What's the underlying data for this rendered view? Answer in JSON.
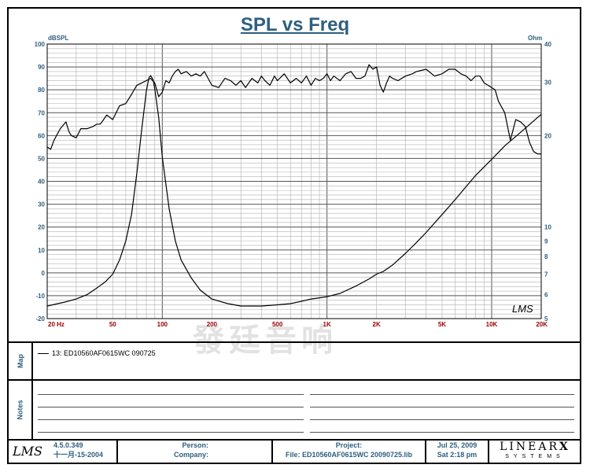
{
  "chart_data": {
    "type": "line",
    "title": "SPL vs Freq",
    "xscale": "log",
    "xlim": [
      20,
      20000
    ],
    "x_ticks": [
      {
        "value": 20,
        "label": "20  Hz"
      },
      {
        "value": 50,
        "label": "50"
      },
      {
        "value": 100,
        "label": "100"
      },
      {
        "value": 200,
        "label": "200"
      },
      {
        "value": 500,
        "label": "500"
      },
      {
        "value": 1000,
        "label": "1K"
      },
      {
        "value": 2000,
        "label": "2K"
      },
      {
        "value": 5000,
        "label": "5K"
      },
      {
        "value": 10000,
        "label": "10K"
      },
      {
        "value": 20000,
        "label": "20K"
      }
    ],
    "ylabel_left": "dBSPL",
    "ylim_left": [
      -20,
      100
    ],
    "yticks_left": [
      100,
      90,
      80,
      70,
      60,
      50,
      40,
      30,
      20,
      10,
      0,
      -10,
      -20
    ],
    "ylabel_right": "Ohm",
    "yscale_right": "log",
    "ylim_right": [
      5,
      40
    ],
    "yticks_right": [
      40,
      30,
      20,
      10,
      9,
      8,
      7,
      6,
      5
    ],
    "grid": true,
    "series": [
      {
        "name": "SPL",
        "axis": "left",
        "x": [
          20,
          21,
          22,
          24,
          26,
          27,
          28,
          30,
          32,
          35,
          38,
          40,
          42,
          44,
          46,
          50,
          55,
          60,
          65,
          70,
          75,
          80,
          85,
          90,
          95,
          100,
          105,
          110,
          115,
          120,
          125,
          130,
          140,
          150,
          160,
          170,
          180,
          200,
          220,
          240,
          260,
          280,
          300,
          320,
          350,
          380,
          400,
          420,
          450,
          480,
          500,
          550,
          600,
          650,
          700,
          750,
          800,
          850,
          900,
          950,
          1000,
          1050,
          1100,
          1200,
          1300,
          1400,
          1500,
          1600,
          1700,
          1800,
          1900,
          2000,
          2100,
          2200,
          2300,
          2400,
          2500,
          2700,
          3000,
          3300,
          3500,
          4000,
          4500,
          5000,
          5500,
          6000,
          6500,
          7000,
          7500,
          8000,
          8500,
          9000,
          9500,
          10000,
          10500,
          11000,
          12000,
          13000,
          14000,
          15000,
          16000,
          17000,
          18000,
          19000,
          20000
        ],
        "y": [
          55,
          54,
          58,
          63,
          66,
          62,
          60,
          59,
          63,
          63,
          64,
          65,
          65,
          67,
          69,
          67,
          73,
          74,
          78,
          82,
          83,
          84,
          85,
          83,
          77,
          79,
          84,
          83,
          86,
          88,
          89,
          87,
          88,
          86,
          87,
          86,
          88,
          82,
          81,
          85,
          84,
          82,
          84,
          81,
          85,
          83,
          86,
          84,
          82,
          86,
          84,
          87,
          83,
          85,
          83,
          86,
          82,
          85,
          84,
          85,
          87,
          84,
          86,
          84,
          87,
          88,
          85,
          85,
          86,
          91,
          89,
          90,
          82,
          79,
          83,
          86,
          85,
          84,
          86,
          87,
          88,
          89,
          86,
          87,
          89,
          89,
          87,
          86,
          84,
          86,
          86,
          83,
          82,
          81,
          80,
          75,
          70,
          58,
          67,
          66,
          64,
          57,
          53,
          52,
          52
        ]
      },
      {
        "name": "Impedance",
        "axis": "right",
        "x": [
          20,
          25,
          30,
          35,
          40,
          45,
          50,
          55,
          60,
          65,
          70,
          75,
          80,
          83,
          85,
          88,
          90,
          95,
          100,
          110,
          120,
          130,
          150,
          170,
          200,
          250,
          300,
          400,
          500,
          600,
          700,
          800,
          900,
          1000,
          1200,
          1500,
          1800,
          2000,
          2200,
          2500,
          3000,
          3500,
          4000,
          5000,
          6000,
          7000,
          8000,
          10000,
          12000,
          15000,
          20000
        ],
        "y": [
          5.5,
          5.65,
          5.8,
          6.0,
          6.3,
          6.6,
          7.0,
          7.8,
          9.0,
          11.0,
          15.0,
          21.0,
          28.0,
          31.0,
          31.5,
          30.5,
          28.5,
          23.0,
          17.0,
          11.5,
          9.0,
          7.8,
          6.8,
          6.2,
          5.8,
          5.6,
          5.5,
          5.5,
          5.55,
          5.6,
          5.7,
          5.8,
          5.85,
          5.9,
          6.05,
          6.4,
          6.75,
          7.0,
          7.15,
          7.5,
          8.2,
          8.9,
          9.6,
          11.0,
          12.3,
          13.6,
          14.8,
          16.7,
          18.5,
          20.5,
          23.5
        ]
      }
    ]
  },
  "brand_mark": "LMS",
  "watermark": "發廷音响",
  "map_label": "Map",
  "notes_label": "Notes",
  "legend": {
    "label": "13: ED10560AF0615WC   090725"
  },
  "footer": {
    "version": "4.5.0.349",
    "version_date": "十一月-15-2004",
    "person_label": "Person:",
    "company_label": "Company:",
    "project_label": "Project:",
    "file_label": "File: ED10560AF0615WC   20090725.lib",
    "date": "Jul 25, 2009",
    "time": "Sat  2:18 pm",
    "company_logo_top": "LINEAR",
    "company_logo_x": "X",
    "company_logo_bottom": "SYSTEMS"
  },
  "colors": {
    "accent": "#2e5f7f",
    "axis_text": "#990000",
    "grid": "#b0b0b0",
    "curve": "#000000"
  }
}
